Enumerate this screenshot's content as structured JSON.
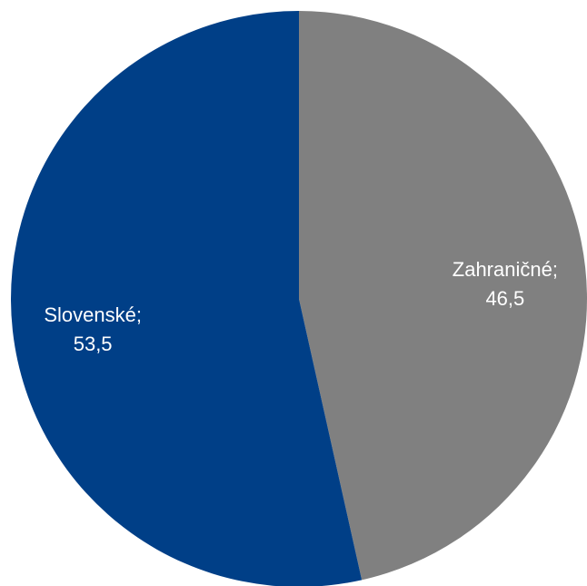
{
  "chart_data": {
    "type": "pie",
    "categories": [
      "Zahraničné;",
      "Slovenské;"
    ],
    "values": [
      46.5,
      53.5
    ],
    "value_labels": [
      "46,5",
      "53,5"
    ],
    "colors": [
      "#808080",
      "#003f87"
    ]
  }
}
